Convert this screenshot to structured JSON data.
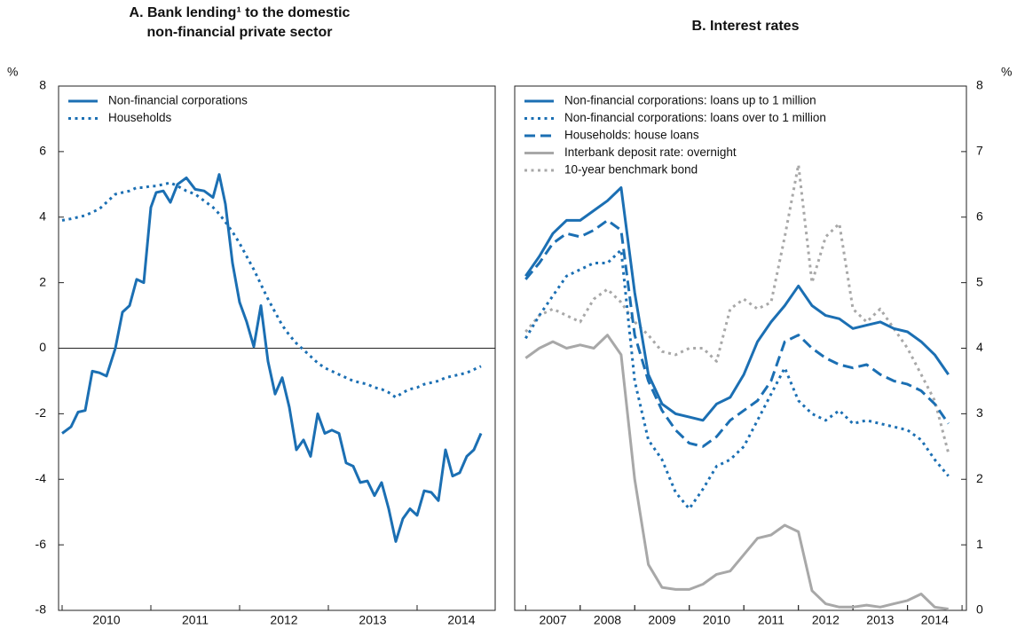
{
  "chart_data": [
    {
      "type": "line",
      "title": [
        "A. Bank lending¹ to the domestic",
        "non-financial private sector"
      ],
      "y_label": "%",
      "y_axis_side": "left",
      "xlim": [
        2009.96,
        2014.88
      ],
      "xticks": [
        {
          "value": 2010.5,
          "label": "2010"
        },
        {
          "value": 2011.5,
          "label": "2011"
        },
        {
          "value": 2012.5,
          "label": "2012"
        },
        {
          "value": 2013.5,
          "label": "2013"
        },
        {
          "value": 2014.5,
          "label": "2014"
        }
      ],
      "ylim": [
        -8,
        8
      ],
      "yticks": [
        -8,
        -6,
        -4,
        -2,
        0,
        2,
        4,
        6,
        8
      ],
      "zero_line": true,
      "legend": "upper left",
      "x": [
        2010.0,
        2010.1,
        2010.18,
        2010.26,
        2010.34,
        2010.42,
        2010.5,
        2010.6,
        2010.68,
        2010.76,
        2010.84,
        2010.92,
        2011.0,
        2011.06,
        2011.14,
        2011.22,
        2011.3,
        2011.4,
        2011.5,
        2011.6,
        2011.7,
        2011.77,
        2011.84,
        2011.92,
        2012.0,
        2012.08,
        2012.16,
        2012.24,
        2012.32,
        2012.4,
        2012.48,
        2012.56,
        2012.64,
        2012.72,
        2012.8,
        2012.88,
        2012.96,
        2013.04,
        2013.12,
        2013.2,
        2013.28,
        2013.36,
        2013.44,
        2013.52,
        2013.6,
        2013.68,
        2013.76,
        2013.84,
        2013.92,
        2014.0,
        2014.08,
        2014.16,
        2014.24,
        2014.32,
        2014.4,
        2014.48,
        2014.56,
        2014.64,
        2014.72
      ],
      "series": [
        {
          "name": "Non-financial corporations",
          "color": "#1b6fb3",
          "style": "solid",
          "values": [
            -2.6,
            -2.4,
            -1.95,
            -1.9,
            -0.7,
            -0.75,
            -0.85,
            0.0,
            1.1,
            1.3,
            2.1,
            2.0,
            4.3,
            4.75,
            4.8,
            4.45,
            5.0,
            5.2,
            4.85,
            4.8,
            4.6,
            5.3,
            4.4,
            2.6,
            1.4,
            0.8,
            0.05,
            1.3,
            -0.4,
            -1.4,
            -0.9,
            -1.8,
            -3.1,
            -2.8,
            -3.3,
            -2.0,
            -2.6,
            -2.5,
            -2.6,
            -3.5,
            -3.6,
            -4.1,
            -4.05,
            -4.5,
            -4.1,
            -4.9,
            -5.9,
            -5.2,
            -4.9,
            -5.1,
            -4.35,
            -4.4,
            -4.65,
            -3.1,
            -3.9,
            -3.8,
            -3.3,
            -3.1,
            -2.6
          ]
        },
        {
          "name": "Households",
          "color": "#1b6fb3",
          "style": "dotted",
          "values": [
            3.9,
            3.95,
            4.0,
            4.05,
            4.15,
            4.25,
            4.45,
            4.7,
            4.75,
            4.8,
            4.9,
            4.9,
            4.95,
            4.95,
            5.0,
            5.05,
            4.95,
            4.8,
            4.7,
            4.5,
            4.3,
            4.1,
            3.85,
            3.55,
            3.2,
            2.8,
            2.4,
            1.95,
            1.5,
            1.1,
            0.7,
            0.4,
            0.15,
            -0.05,
            -0.25,
            -0.45,
            -0.6,
            -0.7,
            -0.8,
            -0.9,
            -1.0,
            -1.05,
            -1.1,
            -1.2,
            -1.25,
            -1.35,
            -1.5,
            -1.35,
            -1.25,
            -1.2,
            -1.1,
            -1.05,
            -1.0,
            -0.9,
            -0.85,
            -0.8,
            -0.75,
            -0.65,
            -0.55
          ]
        }
      ]
    },
    {
      "type": "line",
      "title": [
        "B. Interest rates"
      ],
      "y_label": "%",
      "y_axis_side": "right",
      "xlim": [
        2006.8,
        2015.08
      ],
      "xticks": [
        {
          "value": 2007.5,
          "label": "2007"
        },
        {
          "value": 2008.5,
          "label": "2008"
        },
        {
          "value": 2009.5,
          "label": "2009"
        },
        {
          "value": 2010.5,
          "label": "2010"
        },
        {
          "value": 2011.5,
          "label": "2011"
        },
        {
          "value": 2012.5,
          "label": "2012"
        },
        {
          "value": 2013.5,
          "label": "2013"
        },
        {
          "value": 2014.5,
          "label": "2014"
        }
      ],
      "ylim": [
        0,
        8
      ],
      "yticks": [
        0,
        1,
        2,
        3,
        4,
        5,
        6,
        7,
        8
      ],
      "zero_line": false,
      "legend": "upper left",
      "x": [
        2007.0,
        2007.25,
        2007.5,
        2007.75,
        2008.0,
        2008.25,
        2008.5,
        2008.75,
        2009.0,
        2009.25,
        2009.5,
        2009.75,
        2010.0,
        2010.25,
        2010.5,
        2010.75,
        2011.0,
        2011.25,
        2011.5,
        2011.75,
        2012.0,
        2012.25,
        2012.5,
        2012.75,
        2013.0,
        2013.25,
        2013.5,
        2013.75,
        2014.0,
        2014.25,
        2014.5,
        2014.75
      ],
      "series": [
        {
          "name": "Non-financial corporations: loans up to 1 million",
          "color": "#1b6fb3",
          "style": "solid",
          "values": [
            5.1,
            5.4,
            5.75,
            5.95,
            5.95,
            6.1,
            6.25,
            6.45,
            4.85,
            3.6,
            3.15,
            3.0,
            2.95,
            2.9,
            3.15,
            3.25,
            3.6,
            4.1,
            4.4,
            4.65,
            4.95,
            4.65,
            4.5,
            4.45,
            4.3,
            4.35,
            4.4,
            4.3,
            4.25,
            4.1,
            3.9,
            3.6
          ]
        },
        {
          "name": "Non-financial corporations: loans over to 1 million",
          "color": "#1b6fb3",
          "style": "dotted",
          "values": [
            4.15,
            4.5,
            4.8,
            5.1,
            5.2,
            5.3,
            5.3,
            5.5,
            3.5,
            2.6,
            2.3,
            1.8,
            1.55,
            1.85,
            2.2,
            2.3,
            2.5,
            2.9,
            3.3,
            3.7,
            3.2,
            3.0,
            2.9,
            3.05,
            2.85,
            2.9,
            2.85,
            2.8,
            2.75,
            2.6,
            2.3,
            2.05
          ]
        },
        {
          "name": "Households: house loans",
          "color": "#1b6fb3",
          "style": "dashed",
          "values": [
            5.05,
            5.3,
            5.6,
            5.75,
            5.7,
            5.8,
            5.95,
            5.8,
            4.2,
            3.5,
            3.05,
            2.75,
            2.55,
            2.5,
            2.65,
            2.9,
            3.05,
            3.2,
            3.5,
            4.1,
            4.2,
            4.0,
            3.85,
            3.75,
            3.7,
            3.75,
            3.6,
            3.5,
            3.45,
            3.35,
            3.15,
            2.85
          ]
        },
        {
          "name": "Interbank deposit rate: overnight",
          "color": "#a8a8a8",
          "style": "solid",
          "values": [
            3.85,
            4.0,
            4.1,
            4.0,
            4.05,
            4.0,
            4.2,
            3.9,
            2.0,
            0.7,
            0.35,
            0.32,
            0.32,
            0.4,
            0.55,
            0.6,
            0.85,
            1.1,
            1.15,
            1.3,
            1.2,
            0.3,
            0.1,
            0.05,
            0.05,
            0.08,
            0.05,
            0.1,
            0.15,
            0.25,
            0.05,
            0.02
          ]
        },
        {
          "name": "10-year benchmark bond",
          "color": "#a8a8a8",
          "style": "dotted",
          "values": [
            4.25,
            4.5,
            4.6,
            4.5,
            4.4,
            4.75,
            4.9,
            4.7,
            4.4,
            4.2,
            3.95,
            3.9,
            4.0,
            4.0,
            3.8,
            4.6,
            4.75,
            4.6,
            4.7,
            5.7,
            6.8,
            5.0,
            5.7,
            5.9,
            4.6,
            4.4,
            4.6,
            4.3,
            4.0,
            3.6,
            3.2,
            2.4
          ]
        }
      ]
    }
  ]
}
